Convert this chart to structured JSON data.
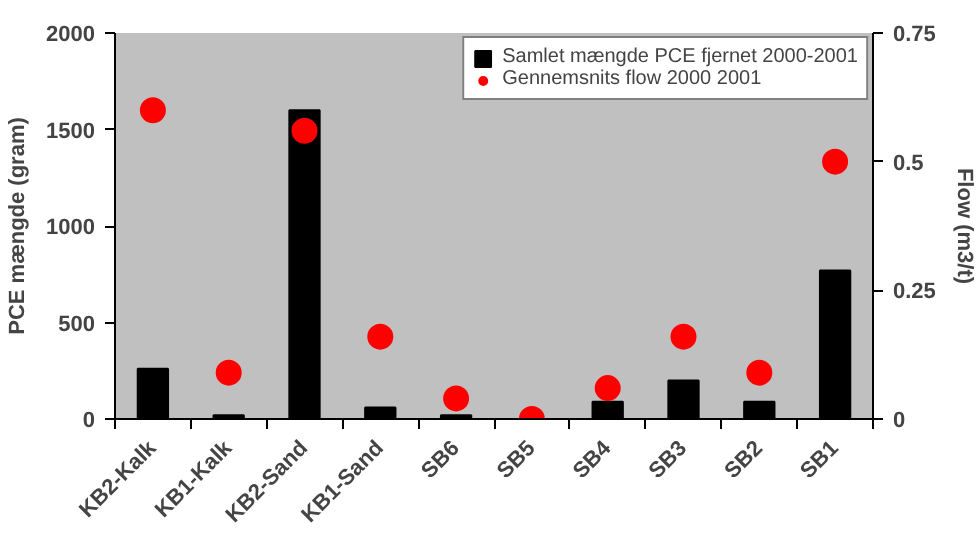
{
  "chart_data": {
    "type": "bar",
    "ylabel": "PCE mængde (gram)",
    "y2label": "Flow (m3/t)",
    "categories": [
      "KB2-Kalk",
      "KB1-Kalk",
      "KB2-Sand",
      "KB1-Sand",
      "SB6",
      "SB5",
      "SB4",
      "SB3",
      "SB2",
      "SB1"
    ],
    "series": [
      {
        "name": "Samlet mængde PCE fjernet 2000-2001",
        "color": "#000000",
        "values": [
          260,
          20,
          1600,
          60,
          20,
          0,
          90,
          200,
          90,
          770
        ]
      },
      {
        "name": "Gennemsnits flow 2000 2001",
        "type": "scatter",
        "axis": "y2",
        "color": "#ff0000",
        "marker": "circle",
        "values": [
          0.6,
          0.09,
          0.56,
          0.16,
          0.04,
          0,
          0.06,
          0.16,
          0.09,
          0.5
        ]
      }
    ],
    "ylim": [
      0,
      2000
    ],
    "yticks": [
      0,
      500,
      1000,
      1500,
      2000
    ],
    "y2lim": [
      0,
      0.75
    ],
    "y2ticks": [
      0,
      0.25,
      0.5,
      0.75
    ],
    "grid": false,
    "legend": "top right"
  }
}
